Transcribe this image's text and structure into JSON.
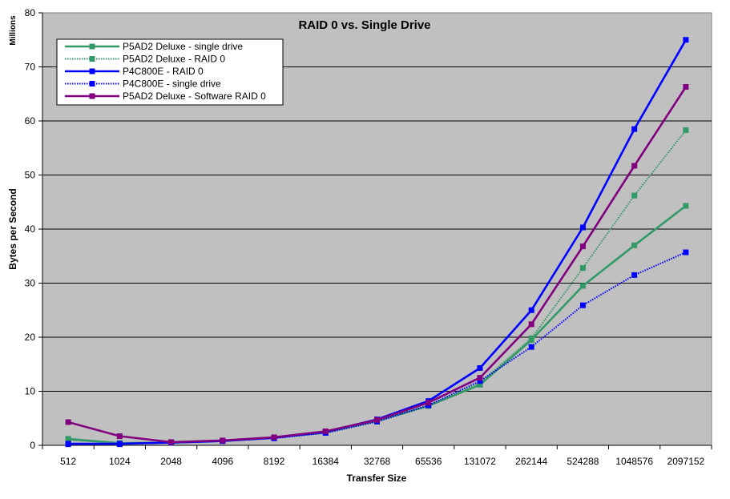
{
  "chart_data": {
    "type": "line",
    "title": "RAID 0 vs. Single Drive",
    "xlabel": "Transfer Size",
    "ylabel": "Bytes per Second",
    "yunit": "Millions",
    "ylim": [
      0,
      80
    ],
    "yticks": [
      0,
      10,
      20,
      30,
      40,
      50,
      60,
      70,
      80
    ],
    "grid": true,
    "legend_position": "top-left",
    "plot_background": "#c0c0c0",
    "categories": [
      "512",
      "1024",
      "2048",
      "4096",
      "8192",
      "16384",
      "32768",
      "65536",
      "131072",
      "262144",
      "524288",
      "1048576",
      "2097152"
    ],
    "series": [
      {
        "name": "P5AD2 Deluxe - single drive",
        "color": "#339966",
        "style": "solid",
        "values": [
          1.2,
          0.4,
          0.5,
          0.8,
          1.4,
          2.4,
          4.5,
          7.3,
          11.2,
          19.5,
          29.5,
          37.0,
          44.3
        ]
      },
      {
        "name": "P5AD2 Deluxe - RAID 0",
        "color": "#339966",
        "style": "dotted",
        "values": [
          1.0,
          0.4,
          0.5,
          0.8,
          1.4,
          2.4,
          4.4,
          7.3,
          11.6,
          19.8,
          32.8,
          46.2,
          58.3
        ]
      },
      {
        "name": "P4C800E - RAID 0",
        "color": "#0000ff",
        "style": "solid",
        "values": [
          0.3,
          0.3,
          0.5,
          0.8,
          1.4,
          2.5,
          4.8,
          8.2,
          14.3,
          25.0,
          40.3,
          58.5,
          75.0
        ]
      },
      {
        "name": "P4C800E - single drive",
        "color": "#0000ff",
        "style": "dotted",
        "values": [
          0.2,
          0.2,
          0.5,
          0.8,
          1.3,
          2.3,
          4.4,
          7.4,
          11.9,
          18.2,
          25.9,
          31.5,
          35.7
        ]
      },
      {
        "name": "P5AD2 Deluxe - Software RAID 0",
        "color": "#800080",
        "style": "solid",
        "values": [
          4.3,
          1.7,
          0.6,
          0.9,
          1.5,
          2.6,
          4.7,
          7.9,
          12.5,
          22.4,
          36.8,
          51.7,
          66.3
        ]
      }
    ]
  }
}
